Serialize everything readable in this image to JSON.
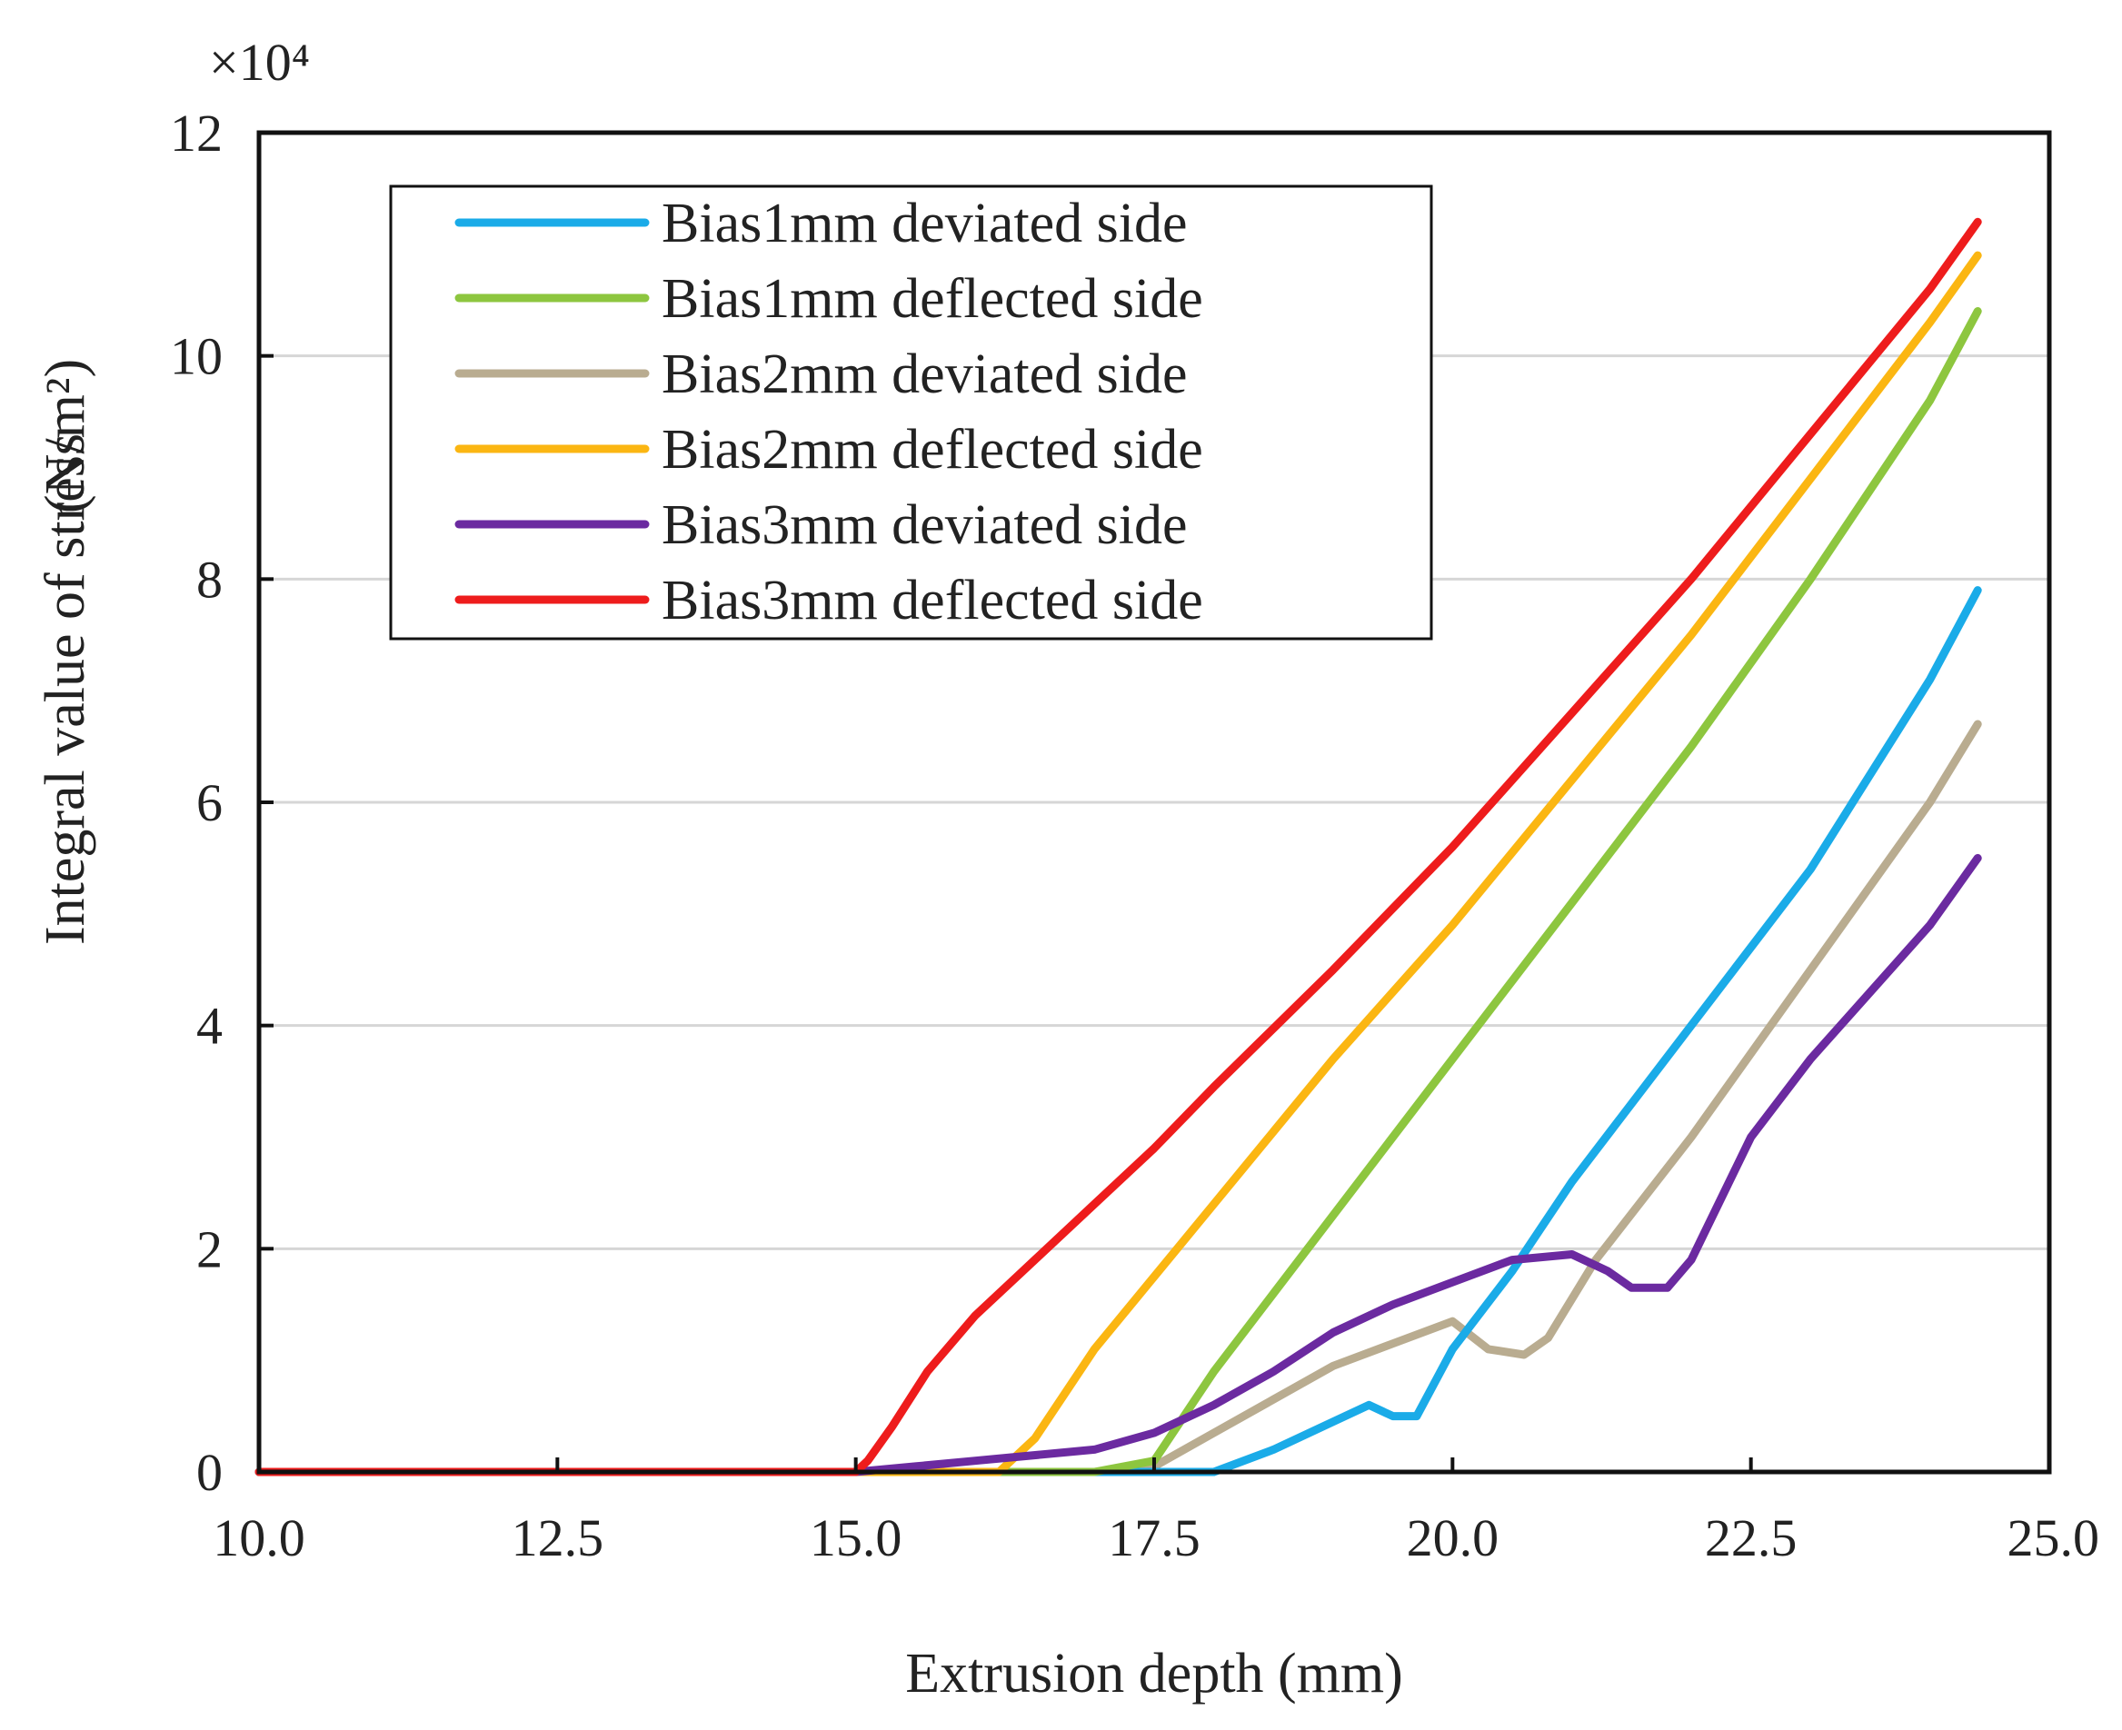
{
  "chart_data": {
    "type": "line",
    "xlabel": "Extrusion  depth (mm)",
    "ylabel": "Integral value of stress",
    "ylabel_unit": "(N/m²)",
    "y_multiplier": "×10⁴",
    "xlim": [
      10.0,
      25.0
    ],
    "ylim": [
      0,
      12
    ],
    "x_ticks": [
      "10.0",
      "12.5",
      "15.0",
      "17.5",
      "20.0",
      "22.5",
      "25.0"
    ],
    "y_ticks": [
      "0",
      "2",
      "4",
      "6",
      "8",
      "10",
      "12"
    ],
    "grid": "horizontal",
    "legend_position": "top-left",
    "series": [
      {
        "name": "Bias1mm deviated side",
        "color": "#1aabe8",
        "x": [
          10.0,
          15.0,
          18.0,
          18.5,
          19.0,
          19.3,
          19.5,
          19.7,
          20.0,
          20.5,
          21.0,
          22.0,
          23.0,
          24.0,
          24.4
        ],
        "y": [
          0,
          0,
          0,
          0.2,
          0.45,
          0.6,
          0.5,
          0.5,
          1.1,
          1.8,
          2.6,
          4.0,
          5.4,
          7.1,
          7.9
        ]
      },
      {
        "name": "Bias1mm deflected side",
        "color": "#8dc63f",
        "x": [
          10.0,
          15.0,
          17.0,
          17.5,
          18.0,
          19.0,
          20.0,
          21.0,
          22.0,
          23.0,
          24.0,
          24.4
        ],
        "y": [
          0,
          0,
          0,
          0.1,
          0.9,
          2.3,
          3.7,
          5.1,
          6.5,
          8.0,
          9.6,
          10.4
        ]
      },
      {
        "name": "Bias2mm deviated side",
        "color": "#b9ac90",
        "x": [
          10.0,
          15.0,
          17.0,
          17.5,
          18.0,
          19.0,
          19.5,
          20.0,
          20.3,
          20.6,
          20.8,
          21.2,
          22.0,
          23.0,
          24.0,
          24.4
        ],
        "y": [
          0,
          0,
          0,
          0.05,
          0.35,
          0.95,
          1.15,
          1.35,
          1.1,
          1.05,
          1.2,
          1.9,
          3.0,
          4.5,
          6.0,
          6.7
        ]
      },
      {
        "name": "Bias2mm deflected side",
        "color": "#fbb612",
        "x": [
          10.0,
          15.0,
          16.2,
          16.5,
          17.0,
          18.0,
          19.0,
          20.0,
          21.0,
          22.0,
          23.0,
          24.0,
          24.4
        ],
        "y": [
          0,
          0,
          0,
          0.3,
          1.1,
          2.4,
          3.7,
          4.9,
          6.2,
          7.5,
          8.9,
          10.3,
          10.9
        ]
      },
      {
        "name": "Bias3mm deviated side",
        "color": "#6b2aa0",
        "x": [
          10.0,
          15.0,
          15.5,
          16.0,
          17.0,
          17.5,
          18.0,
          18.5,
          19.0,
          19.5,
          20.0,
          20.5,
          21.0,
          21.3,
          21.5,
          21.8,
          22.0,
          22.5,
          23.0,
          24.0,
          24.4
        ],
        "y": [
          0,
          0,
          0.05,
          0.1,
          0.2,
          0.35,
          0.6,
          0.9,
          1.25,
          1.5,
          1.7,
          1.9,
          1.95,
          1.8,
          1.65,
          1.65,
          1.9,
          3.0,
          3.7,
          4.9,
          5.5
        ]
      },
      {
        "name": "Bias3mm deflected side",
        "color": "#ee1c1c",
        "x": [
          10.0,
          15.0,
          15.1,
          15.3,
          15.6,
          16.0,
          16.5,
          17.0,
          17.5,
          18.0,
          19.0,
          20.0,
          21.0,
          22.0,
          23.0,
          24.0,
          24.4
        ],
        "y": [
          0,
          0,
          0.1,
          0.4,
          0.9,
          1.4,
          1.9,
          2.4,
          2.9,
          3.45,
          4.5,
          5.6,
          6.8,
          8.0,
          9.3,
          10.6,
          11.2
        ]
      }
    ]
  }
}
